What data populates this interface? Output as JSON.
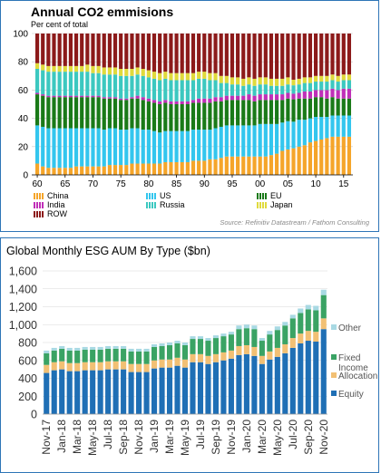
{
  "chart1": {
    "title": "Annual CO2 emmisions",
    "subtitle": "Per cent of total",
    "source": "Source: Refinitiv Datastream / Fathom Consulting",
    "chart_data": {
      "type": "bar",
      "stacked": true,
      "ylim": [
        0,
        100
      ],
      "yticks": [
        "0",
        "20",
        "40",
        "60",
        "80",
        "100"
      ],
      "xticks": [
        "60",
        "65",
        "70",
        "75",
        "80",
        "85",
        "90",
        "95",
        "00",
        "05",
        "10",
        "15"
      ],
      "categories": [
        "1960",
        "1961",
        "1962",
        "1963",
        "1964",
        "1965",
        "1966",
        "1967",
        "1968",
        "1969",
        "1970",
        "1971",
        "1972",
        "1973",
        "1974",
        "1975",
        "1976",
        "1977",
        "1978",
        "1979",
        "1980",
        "1981",
        "1982",
        "1983",
        "1984",
        "1985",
        "1986",
        "1987",
        "1988",
        "1989",
        "1990",
        "1991",
        "1992",
        "1993",
        "1994",
        "1995",
        "1996",
        "1997",
        "1998",
        "1999",
        "2000",
        "2001",
        "2002",
        "2003",
        "2004",
        "2005",
        "2006",
        "2007",
        "2008",
        "2009",
        "2010",
        "2011",
        "2012",
        "2013",
        "2014",
        "2015",
        "2016"
      ],
      "series": [
        {
          "name": "China",
          "color": "#f5a52a",
          "values": [
            8,
            6,
            5,
            5,
            5,
            5,
            5,
            6,
            6,
            6,
            6,
            6,
            6,
            7,
            7,
            7,
            7,
            8,
            8,
            8,
            8,
            8,
            8,
            9,
            9,
            9,
            9,
            9,
            10,
            10,
            10,
            11,
            11,
            12,
            13,
            13,
            13,
            13,
            13,
            13,
            13,
            13,
            14,
            15,
            17,
            18,
            19,
            20,
            21,
            23,
            24,
            25,
            26,
            27,
            27,
            27,
            27
          ]
        },
        {
          "name": "US",
          "color": "#33c6ee",
          "values": [
            27,
            28,
            28,
            28,
            28,
            28,
            28,
            27,
            27,
            27,
            27,
            27,
            26,
            26,
            26,
            25,
            25,
            25,
            25,
            24,
            24,
            23,
            22,
            22,
            22,
            22,
            22,
            22,
            22,
            22,
            22,
            21,
            22,
            22,
            22,
            22,
            22,
            22,
            22,
            22,
            23,
            23,
            22,
            21,
            20,
            20,
            19,
            19,
            18,
            17,
            17,
            16,
            15,
            15,
            15,
            15,
            15
          ]
        },
        {
          "name": "EU",
          "color": "#1a7a18",
          "values": [
            22,
            22,
            22,
            22,
            22,
            22,
            22,
            22,
            22,
            22,
            22,
            22,
            22,
            21,
            21,
            21,
            21,
            21,
            21,
            21,
            20,
            20,
            20,
            20,
            19,
            19,
            19,
            19,
            19,
            19,
            19,
            19,
            19,
            18,
            18,
            18,
            18,
            18,
            18,
            17,
            17,
            17,
            17,
            17,
            16,
            16,
            16,
            15,
            15,
            14,
            14,
            14,
            13,
            13,
            12,
            12,
            12
          ]
        },
        {
          "name": "India",
          "color": "#c02fb8",
          "values": [
            1,
            1,
            1,
            1,
            1,
            1,
            1,
            1,
            1,
            1,
            1,
            1,
            1,
            1,
            1,
            1,
            1,
            1,
            2,
            2,
            2,
            2,
            2,
            2,
            2,
            2,
            2,
            2,
            2,
            3,
            3,
            3,
            3,
            3,
            3,
            3,
            3,
            3,
            4,
            4,
            4,
            4,
            4,
            4,
            4,
            4,
            4,
            4,
            5,
            5,
            5,
            5,
            6,
            6,
            6,
            7,
            7
          ]
        },
        {
          "name": "Russia",
          "color": "#3cc8c0",
          "values": [
            17,
            17,
            17,
            17,
            17,
            17,
            17,
            17,
            17,
            17,
            16,
            16,
            16,
            16,
            16,
            16,
            16,
            15,
            15,
            15,
            15,
            15,
            15,
            15,
            15,
            15,
            15,
            15,
            14,
            14,
            14,
            13,
            12,
            10,
            9,
            8,
            8,
            7,
            7,
            7,
            7,
            7,
            6,
            6,
            6,
            6,
            6,
            6,
            6,
            6,
            6,
            6,
            6,
            6,
            6,
            6,
            6
          ]
        },
        {
          "name": "Japan",
          "color": "#e0da3c",
          "values": [
            4,
            4,
            4,
            4,
            4,
            4,
            4,
            4,
            4,
            5,
            5,
            5,
            5,
            5,
            5,
            5,
            5,
            5,
            5,
            5,
            5,
            5,
            5,
            5,
            5,
            5,
            5,
            5,
            5,
            5,
            5,
            5,
            5,
            5,
            5,
            5,
            5,
            5,
            5,
            5,
            5,
            5,
            5,
            5,
            5,
            5,
            4,
            4,
            4,
            4,
            4,
            4,
            4,
            4,
            4,
            4,
            4
          ]
        },
        {
          "name": "ROW",
          "color": "#8c1a1a",
          "values": [
            21,
            22,
            23,
            23,
            23,
            23,
            23,
            23,
            23,
            22,
            23,
            23,
            24,
            24,
            24,
            25,
            25,
            25,
            24,
            25,
            26,
            27,
            28,
            27,
            28,
            28,
            28,
            28,
            28,
            27,
            27,
            28,
            28,
            30,
            30,
            31,
            31,
            32,
            31,
            32,
            31,
            31,
            32,
            32,
            32,
            31,
            33,
            32,
            31,
            31,
            30,
            30,
            30,
            29,
            30,
            29,
            29
          ]
        }
      ],
      "legend": [
        {
          "name": "China",
          "color": "#f5a52a"
        },
        {
          "name": "US",
          "color": "#33c6ee"
        },
        {
          "name": "EU",
          "color": "#1a7a18"
        },
        {
          "name": "India",
          "color": "#c02fb8"
        },
        {
          "name": "Russia",
          "color": "#3cc8c0"
        },
        {
          "name": "Japan",
          "color": "#e0da3c"
        },
        {
          "name": "ROW",
          "color": "#8c1a1a"
        }
      ]
    }
  },
  "chart2": {
    "title": "Global Monthly ESG AUM By Type ($bn)",
    "chart_data": {
      "type": "bar",
      "stacked": true,
      "ylim": [
        0,
        1600
      ],
      "yticks": [
        "0",
        "200",
        "400",
        "600",
        "800",
        "1,000",
        "1,200",
        "1,400",
        "1,600"
      ],
      "xticks": [
        "Nov-17",
        "Jan-18",
        "Mar-18",
        "May-18",
        "Jul-18",
        "Sep-18",
        "Nov-18",
        "Jan-19",
        "Mar-19",
        "May-19",
        "Jul-19",
        "Sep-19",
        "Nov-19",
        "Jan-20",
        "Mar-20",
        "May-20",
        "Jul-20",
        "Sep-20",
        "Nov-20"
      ],
      "categories": [
        "Nov-17",
        "Dec-17",
        "Jan-18",
        "Feb-18",
        "Mar-18",
        "Apr-18",
        "May-18",
        "Jun-18",
        "Jul-18",
        "Aug-18",
        "Sep-18",
        "Oct-18",
        "Nov-18",
        "Dec-18",
        "Jan-19",
        "Feb-19",
        "Mar-19",
        "Apr-19",
        "May-19",
        "Jun-19",
        "Jul-19",
        "Aug-19",
        "Sep-19",
        "Oct-19",
        "Nov-19",
        "Dec-19",
        "Jan-20",
        "Feb-20",
        "Mar-20",
        "Apr-20",
        "May-20",
        "Jun-20",
        "Jul-20",
        "Aug-20",
        "Sep-20",
        "Oct-20",
        "Nov-20"
      ],
      "series": [
        {
          "name": "Equity",
          "color": "#1f6fb5",
          "values": [
            460,
            490,
            500,
            480,
            480,
            490,
            490,
            490,
            500,
            500,
            500,
            470,
            470,
            470,
            510,
            520,
            520,
            540,
            520,
            580,
            580,
            560,
            580,
            600,
            620,
            660,
            670,
            650,
            560,
            610,
            640,
            680,
            740,
            790,
            820,
            810,
            950
          ]
        },
        {
          "name": "Allocation",
          "color": "#f2c074",
          "values": [
            90,
            90,
            90,
            90,
            90,
            90,
            90,
            90,
            90,
            90,
            90,
            90,
            90,
            90,
            90,
            90,
            90,
            90,
            90,
            90,
            90,
            90,
            90,
            90,
            90,
            100,
            100,
            100,
            90,
            90,
            100,
            100,
            110,
            110,
            110,
            110,
            120
          ]
        },
        {
          "name": "Fixed Income",
          "color": "#3aa364",
          "values": [
            130,
            130,
            140,
            140,
            140,
            140,
            140,
            140,
            140,
            140,
            140,
            140,
            140,
            140,
            150,
            150,
            160,
            160,
            160,
            170,
            170,
            170,
            180,
            180,
            180,
            190,
            190,
            200,
            170,
            190,
            200,
            210,
            220,
            230,
            240,
            240,
            260
          ]
        },
        {
          "name": "Other",
          "color": "#a8d9e3",
          "values": [
            30,
            30,
            30,
            30,
            30,
            30,
            30,
            30,
            30,
            30,
            30,
            30,
            30,
            30,
            30,
            30,
            30,
            30,
            30,
            30,
            30,
            30,
            30,
            30,
            30,
            40,
            40,
            40,
            30,
            40,
            40,
            40,
            40,
            50,
            50,
            50,
            60
          ]
        }
      ],
      "legend": [
        "Other",
        "Fixed Income",
        "Allocation",
        "Equity"
      ]
    }
  }
}
